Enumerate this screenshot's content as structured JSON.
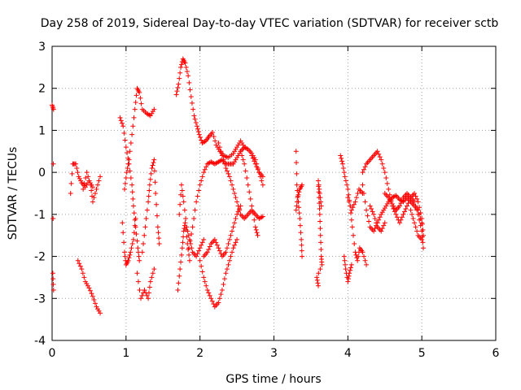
{
  "chart_data": {
    "type": "scatter",
    "title": "Day 258 of 2019, Sidereal Day-to-day VTEC variation (SDTVAR) for receiver sctb",
    "xlabel": "GPS time / hours",
    "ylabel": "SDTVAR / TECUs",
    "xlim": [
      0,
      6
    ],
    "ylim": [
      -4,
      3
    ],
    "x_ticks": [
      0,
      1,
      2,
      3,
      4,
      5,
      6
    ],
    "y_ticks": [
      -4,
      -3,
      -2,
      -1,
      0,
      1,
      2,
      3
    ],
    "grid": true,
    "marker": "+",
    "series_color": "#ff0000",
    "tracks": [
      {
        "name": "t01",
        "points": [
          [
            0.0,
            1.6
          ],
          [
            0.02,
            1.5
          ],
          [
            0.01,
            -2.4
          ],
          [
            0.02,
            -2.8
          ]
        ]
      },
      {
        "name": "t02",
        "points": [
          [
            0.25,
            -0.5
          ],
          [
            0.28,
            0.2
          ],
          [
            0.32,
            0.2
          ],
          [
            0.36,
            -0.1
          ],
          [
            0.4,
            -0.25
          ],
          [
            0.45,
            -0.35
          ],
          [
            0.5,
            -0.2
          ],
          [
            0.55,
            -0.35
          ]
        ]
      },
      {
        "name": "t03",
        "points": [
          [
            0.35,
            -2.1
          ],
          [
            0.4,
            -2.3
          ],
          [
            0.45,
            -2.6
          ],
          [
            0.5,
            -2.75
          ],
          [
            0.55,
            -2.95
          ],
          [
            0.6,
            -3.2
          ],
          [
            0.65,
            -3.35
          ]
        ]
      },
      {
        "name": "t04",
        "points": [
          [
            0.42,
            -0.4
          ],
          [
            0.47,
            0.0
          ],
          [
            0.52,
            -0.3
          ],
          [
            0.55,
            -0.7
          ],
          [
            0.6,
            -0.4
          ],
          [
            0.65,
            -0.1
          ]
        ]
      },
      {
        "name": "t05",
        "points": [
          [
            0.92,
            1.3
          ],
          [
            0.96,
            1.1
          ],
          [
            1.0,
            0.6
          ],
          [
            1.04,
            0.2
          ],
          [
            1.08,
            -0.3
          ],
          [
            1.1,
            -0.8
          ],
          [
            1.13,
            -1.3
          ],
          [
            1.16,
            -1.8
          ],
          [
            1.18,
            -2.1
          ]
        ]
      },
      {
        "name": "t06",
        "points": [
          [
            0.95,
            -1.2
          ],
          [
            0.98,
            -1.9
          ],
          [
            1.0,
            -2.2
          ],
          [
            1.03,
            -2.1
          ],
          [
            1.06,
            -1.9
          ],
          [
            1.1,
            -1.6
          ],
          [
            1.13,
            -1.1
          ]
        ]
      },
      {
        "name": "t07",
        "points": [
          [
            0.98,
            -0.4
          ],
          [
            1.01,
            0.0
          ],
          [
            1.04,
            0.3
          ],
          [
            1.08,
            0.9
          ],
          [
            1.12,
            1.5
          ],
          [
            1.15,
            2.0
          ],
          [
            1.18,
            1.9
          ],
          [
            1.22,
            1.5
          ],
          [
            1.28,
            1.4
          ],
          [
            1.33,
            1.35
          ],
          [
            1.38,
            1.5
          ]
        ]
      },
      {
        "name": "t08",
        "points": [
          [
            1.15,
            -2.4
          ],
          [
            1.2,
            -3.0
          ],
          [
            1.25,
            -2.8
          ],
          [
            1.3,
            -3.0
          ],
          [
            1.33,
            -2.6
          ],
          [
            1.38,
            -2.3
          ]
        ]
      },
      {
        "name": "t09",
        "points": [
          [
            1.22,
            -1.9
          ],
          [
            1.26,
            -1.3
          ],
          [
            1.3,
            -0.7
          ],
          [
            1.32,
            -0.3
          ],
          [
            1.35,
            0.1
          ],
          [
            1.38,
            0.3
          ],
          [
            1.4,
            -0.5
          ],
          [
            1.43,
            -1.3
          ],
          [
            1.45,
            -1.7
          ]
        ]
      },
      {
        "name": "t10",
        "points": [
          [
            1.68,
            1.85
          ],
          [
            1.71,
            2.1
          ],
          [
            1.74,
            2.5
          ],
          [
            1.77,
            2.7
          ],
          [
            1.8,
            2.6
          ],
          [
            1.84,
            2.3
          ],
          [
            1.88,
            1.8
          ],
          [
            1.92,
            1.35
          ],
          [
            1.96,
            1.1
          ],
          [
            1.99,
            0.9
          ],
          [
            2.03,
            0.7
          ],
          [
            2.08,
            0.75
          ],
          [
            2.12,
            0.85
          ],
          [
            2.17,
            0.95
          ],
          [
            2.22,
            0.65
          ],
          [
            2.27,
            0.5
          ],
          [
            2.32,
            0.4
          ],
          [
            2.38,
            0.35
          ],
          [
            2.45,
            0.45
          ],
          [
            2.5,
            0.6
          ],
          [
            2.55,
            0.75
          ],
          [
            2.6,
            0.6
          ]
        ]
      },
      {
        "name": "t11",
        "points": [
          [
            1.7,
            -2.8
          ],
          [
            1.73,
            -2.3
          ],
          [
            1.76,
            -1.8
          ],
          [
            1.78,
            -1.4
          ],
          [
            1.8,
            -1.2
          ],
          [
            1.83,
            -1.7
          ],
          [
            1.86,
            -2.1
          ]
        ]
      },
      {
        "name": "t12",
        "points": [
          [
            1.72,
            -1.0
          ],
          [
            1.75,
            -0.3
          ],
          [
            1.78,
            -0.7
          ],
          [
            1.82,
            -1.3
          ],
          [
            1.86,
            -1.6
          ],
          [
            1.9,
            -1.9
          ],
          [
            1.95,
            -2.0
          ],
          [
            2.0,
            -1.8
          ],
          [
            2.05,
            -1.6
          ]
        ]
      },
      {
        "name": "t13",
        "points": [
          [
            1.85,
            -1.8
          ],
          [
            1.9,
            -1.3
          ],
          [
            1.95,
            -0.7
          ],
          [
            2.0,
            -0.3
          ],
          [
            2.05,
            0.0
          ],
          [
            2.1,
            0.2
          ],
          [
            2.15,
            0.25
          ],
          [
            2.2,
            0.2
          ],
          [
            2.25,
            0.25
          ],
          [
            2.3,
            0.3
          ],
          [
            2.35,
            0.2
          ],
          [
            2.4,
            0.2
          ],
          [
            2.45,
            0.2
          ],
          [
            2.5,
            0.35
          ],
          [
            2.55,
            0.5
          ],
          [
            2.6,
            0.6
          ],
          [
            2.65,
            0.55
          ],
          [
            2.7,
            0.45
          ],
          [
            2.75,
            0.3
          ],
          [
            2.8,
            0.0
          ],
          [
            2.85,
            -0.3
          ]
        ]
      },
      {
        "name": "t14",
        "points": [
          [
            2.0,
            -2.1
          ],
          [
            2.05,
            -2.5
          ],
          [
            2.1,
            -2.8
          ],
          [
            2.15,
            -3.0
          ],
          [
            2.2,
            -3.2
          ],
          [
            2.25,
            -3.1
          ],
          [
            2.3,
            -2.8
          ],
          [
            2.35,
            -2.4
          ],
          [
            2.4,
            -2.1
          ],
          [
            2.45,
            -1.8
          ],
          [
            2.5,
            -1.6
          ]
        ]
      },
      {
        "name": "t15",
        "points": [
          [
            2.05,
            -2.0
          ],
          [
            2.1,
            -1.9
          ],
          [
            2.15,
            -1.7
          ],
          [
            2.2,
            -1.6
          ],
          [
            2.25,
            -1.8
          ],
          [
            2.3,
            -2.0
          ],
          [
            2.35,
            -1.9
          ],
          [
            2.4,
            -1.6
          ],
          [
            2.45,
            -1.3
          ],
          [
            2.5,
            -1.0
          ],
          [
            2.55,
            -0.8
          ]
        ]
      },
      {
        "name": "t16",
        "points": [
          [
            2.25,
            0.7
          ],
          [
            2.3,
            0.4
          ],
          [
            2.35,
            0.1
          ],
          [
            2.4,
            -0.1
          ],
          [
            2.45,
            -0.4
          ],
          [
            2.5,
            -0.7
          ],
          [
            2.55,
            -1.0
          ],
          [
            2.6,
            -1.1
          ],
          [
            2.65,
            -1.0
          ],
          [
            2.7,
            -0.9
          ],
          [
            2.75,
            -1.0
          ],
          [
            2.8,
            -1.1
          ],
          [
            2.85,
            -1.05
          ]
        ]
      },
      {
        "name": "t17",
        "points": [
          [
            2.55,
            0.5
          ],
          [
            2.6,
            0.2
          ],
          [
            2.65,
            -0.3
          ],
          [
            2.7,
            -0.8
          ],
          [
            2.75,
            -1.3
          ],
          [
            2.78,
            -1.5
          ]
        ]
      },
      {
        "name": "t18",
        "points": [
          [
            2.7,
            0.4
          ],
          [
            2.75,
            0.2
          ],
          [
            2.8,
            0.0
          ],
          [
            2.85,
            -0.1
          ]
        ]
      },
      {
        "name": "t19",
        "points": [
          [
            3.3,
            0.5
          ],
          [
            3.31,
            -0.3
          ],
          [
            3.33,
            -0.7
          ],
          [
            3.35,
            -1.1
          ],
          [
            3.37,
            -1.6
          ],
          [
            3.38,
            -2.0
          ]
        ]
      },
      {
        "name": "t20",
        "points": [
          [
            3.3,
            -0.9
          ],
          [
            3.32,
            -0.6
          ],
          [
            3.35,
            -0.4
          ],
          [
            3.38,
            -0.3
          ]
        ]
      },
      {
        "name": "t21",
        "points": [
          [
            3.6,
            -0.2
          ],
          [
            3.61,
            -0.6
          ],
          [
            3.62,
            -1.0
          ],
          [
            3.63,
            -1.5
          ],
          [
            3.64,
            -2.0
          ],
          [
            3.65,
            -2.2
          ],
          [
            3.58,
            -2.5
          ],
          [
            3.6,
            -2.7
          ]
        ]
      },
      {
        "name": "t22",
        "points": [
          [
            3.6,
            -0.2
          ],
          [
            3.62,
            -0.5
          ],
          [
            3.64,
            -0.8
          ]
        ]
      },
      {
        "name": "t23",
        "points": [
          [
            3.9,
            0.4
          ],
          [
            3.93,
            0.2
          ],
          [
            3.96,
            -0.1
          ],
          [
            4.0,
            -0.4
          ],
          [
            4.03,
            -0.8
          ],
          [
            4.06,
            -1.3
          ],
          [
            4.1,
            -1.9
          ],
          [
            4.13,
            -2.1
          ],
          [
            4.16,
            -1.8
          ],
          [
            4.2,
            -1.9
          ],
          [
            4.25,
            -2.2
          ]
        ]
      },
      {
        "name": "t24",
        "points": [
          [
            3.95,
            -2.0
          ],
          [
            3.97,
            -2.3
          ],
          [
            4.0,
            -2.6
          ],
          [
            4.02,
            -2.4
          ],
          [
            4.05,
            -2.2
          ]
        ]
      },
      {
        "name": "t25",
        "points": [
          [
            4.0,
            -0.6
          ],
          [
            4.05,
            -0.9
          ],
          [
            4.1,
            -0.7
          ],
          [
            4.15,
            -0.4
          ],
          [
            4.2,
            -0.5
          ]
        ]
      },
      {
        "name": "t26",
        "points": [
          [
            4.2,
            -0.3
          ],
          [
            4.25,
            -0.9
          ],
          [
            4.3,
            -1.3
          ],
          [
            4.35,
            -1.4
          ],
          [
            4.4,
            -1.2
          ],
          [
            4.45,
            -1.0
          ],
          [
            4.5,
            -0.85
          ],
          [
            4.55,
            -0.7
          ],
          [
            4.6,
            -0.6
          ],
          [
            4.65,
            -0.55
          ],
          [
            4.7,
            -0.65
          ],
          [
            4.75,
            -0.7
          ],
          [
            4.8,
            -0.6
          ],
          [
            4.85,
            -0.7
          ],
          [
            4.9,
            -0.8
          ],
          [
            4.95,
            -0.9
          ],
          [
            5.0,
            -1.2
          ]
        ]
      },
      {
        "name": "t27",
        "points": [
          [
            4.2,
            0.0
          ],
          [
            4.25,
            0.2
          ],
          [
            4.3,
            0.3
          ],
          [
            4.35,
            0.4
          ],
          [
            4.4,
            0.5
          ],
          [
            4.45,
            0.3
          ],
          [
            4.5,
            0.0
          ],
          [
            4.55,
            -0.4
          ],
          [
            4.6,
            -0.8
          ],
          [
            4.65,
            -1.0
          ],
          [
            4.7,
            -1.2
          ],
          [
            4.75,
            -1.0
          ],
          [
            4.8,
            -0.8
          ],
          [
            4.85,
            -0.6
          ],
          [
            4.9,
            -0.5
          ],
          [
            4.95,
            -0.7
          ],
          [
            5.0,
            -1.1
          ],
          [
            5.02,
            -1.5
          ]
        ]
      },
      {
        "name": "t28",
        "points": [
          [
            4.5,
            -0.5
          ],
          [
            4.55,
            -0.6
          ],
          [
            4.6,
            -0.75
          ],
          [
            4.65,
            -0.9
          ],
          [
            4.7,
            -0.8
          ],
          [
            4.75,
            -0.6
          ],
          [
            4.8,
            -0.5
          ],
          [
            4.85,
            -0.6
          ],
          [
            4.9,
            -0.7
          ],
          [
            4.95,
            -1.0
          ],
          [
            5.0,
            -1.4
          ],
          [
            5.02,
            -1.8
          ]
        ]
      },
      {
        "name": "t29",
        "points": [
          [
            4.3,
            -0.8
          ],
          [
            4.35,
            -1.0
          ],
          [
            4.4,
            -1.3
          ],
          [
            4.45,
            -1.4
          ],
          [
            4.5,
            -1.2
          ]
        ]
      },
      {
        "name": "t30",
        "points": [
          [
            4.85,
            -0.9
          ],
          [
            4.9,
            -1.2
          ],
          [
            4.95,
            -1.5
          ],
          [
            5.0,
            -1.6
          ]
        ]
      }
    ]
  }
}
